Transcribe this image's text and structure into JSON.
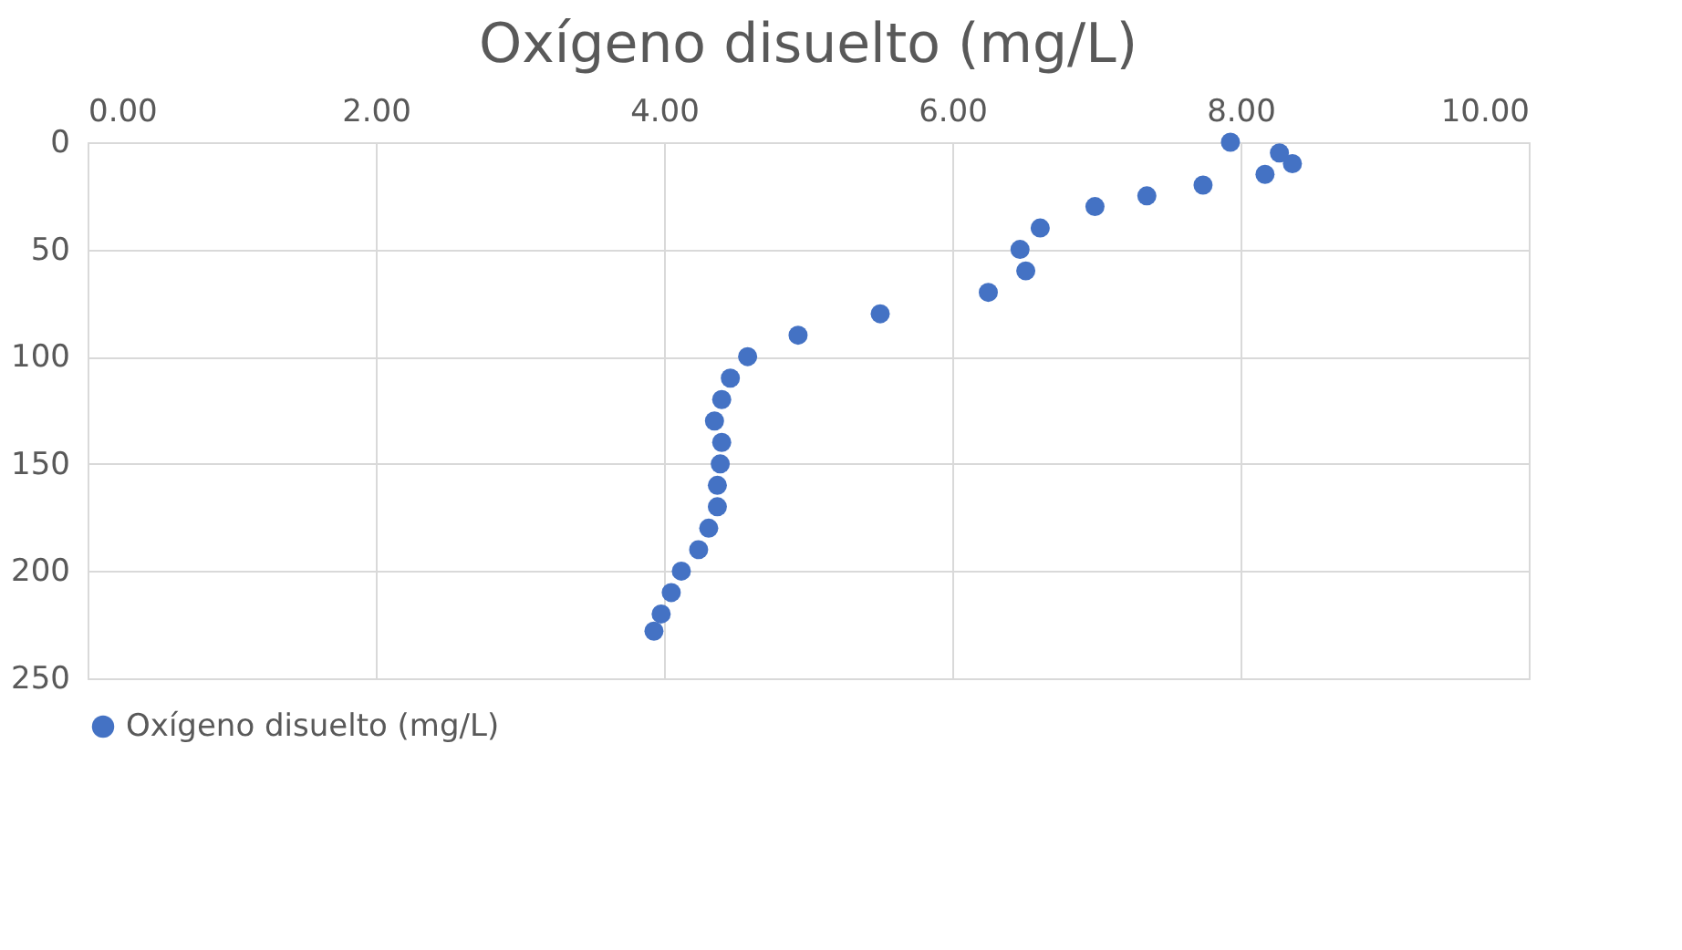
{
  "chart_data": {
    "type": "scatter",
    "title": "Oxígeno disuelto (mg/L)",
    "xlim": [
      0,
      10
    ],
    "xticks": [
      {
        "value": 0,
        "label": "0.00"
      },
      {
        "value": 2,
        "label": "2.00"
      },
      {
        "value": 4,
        "label": "4.00"
      },
      {
        "value": 6,
        "label": "6.00"
      },
      {
        "value": 8,
        "label": "8.00"
      },
      {
        "value": 10,
        "label": "10.00"
      }
    ],
    "ylim": [
      250,
      0
    ],
    "yticks": [
      0,
      50,
      100,
      150,
      200,
      250
    ],
    "grid": true,
    "legend": "bottom",
    "marker": "circle",
    "series": [
      {
        "name": "Oxígeno disuelto (mg/L)",
        "color": "#4472c4",
        "x": [
          7.93,
          8.27,
          8.36,
          8.17,
          7.74,
          7.35,
          6.99,
          6.61,
          6.47,
          6.51,
          6.25,
          5.5,
          4.93,
          4.58,
          4.46,
          4.4,
          4.35,
          4.4,
          4.39,
          4.37,
          4.37,
          4.31,
          4.24,
          4.12,
          4.05,
          3.98,
          3.93
        ],
        "values": [
          0,
          5,
          10,
          15,
          20,
          25,
          30,
          40,
          50,
          60,
          70,
          80,
          90,
          100,
          110,
          120,
          130,
          140,
          150,
          160,
          170,
          180,
          190,
          200,
          210,
          220,
          228
        ]
      }
    ]
  }
}
